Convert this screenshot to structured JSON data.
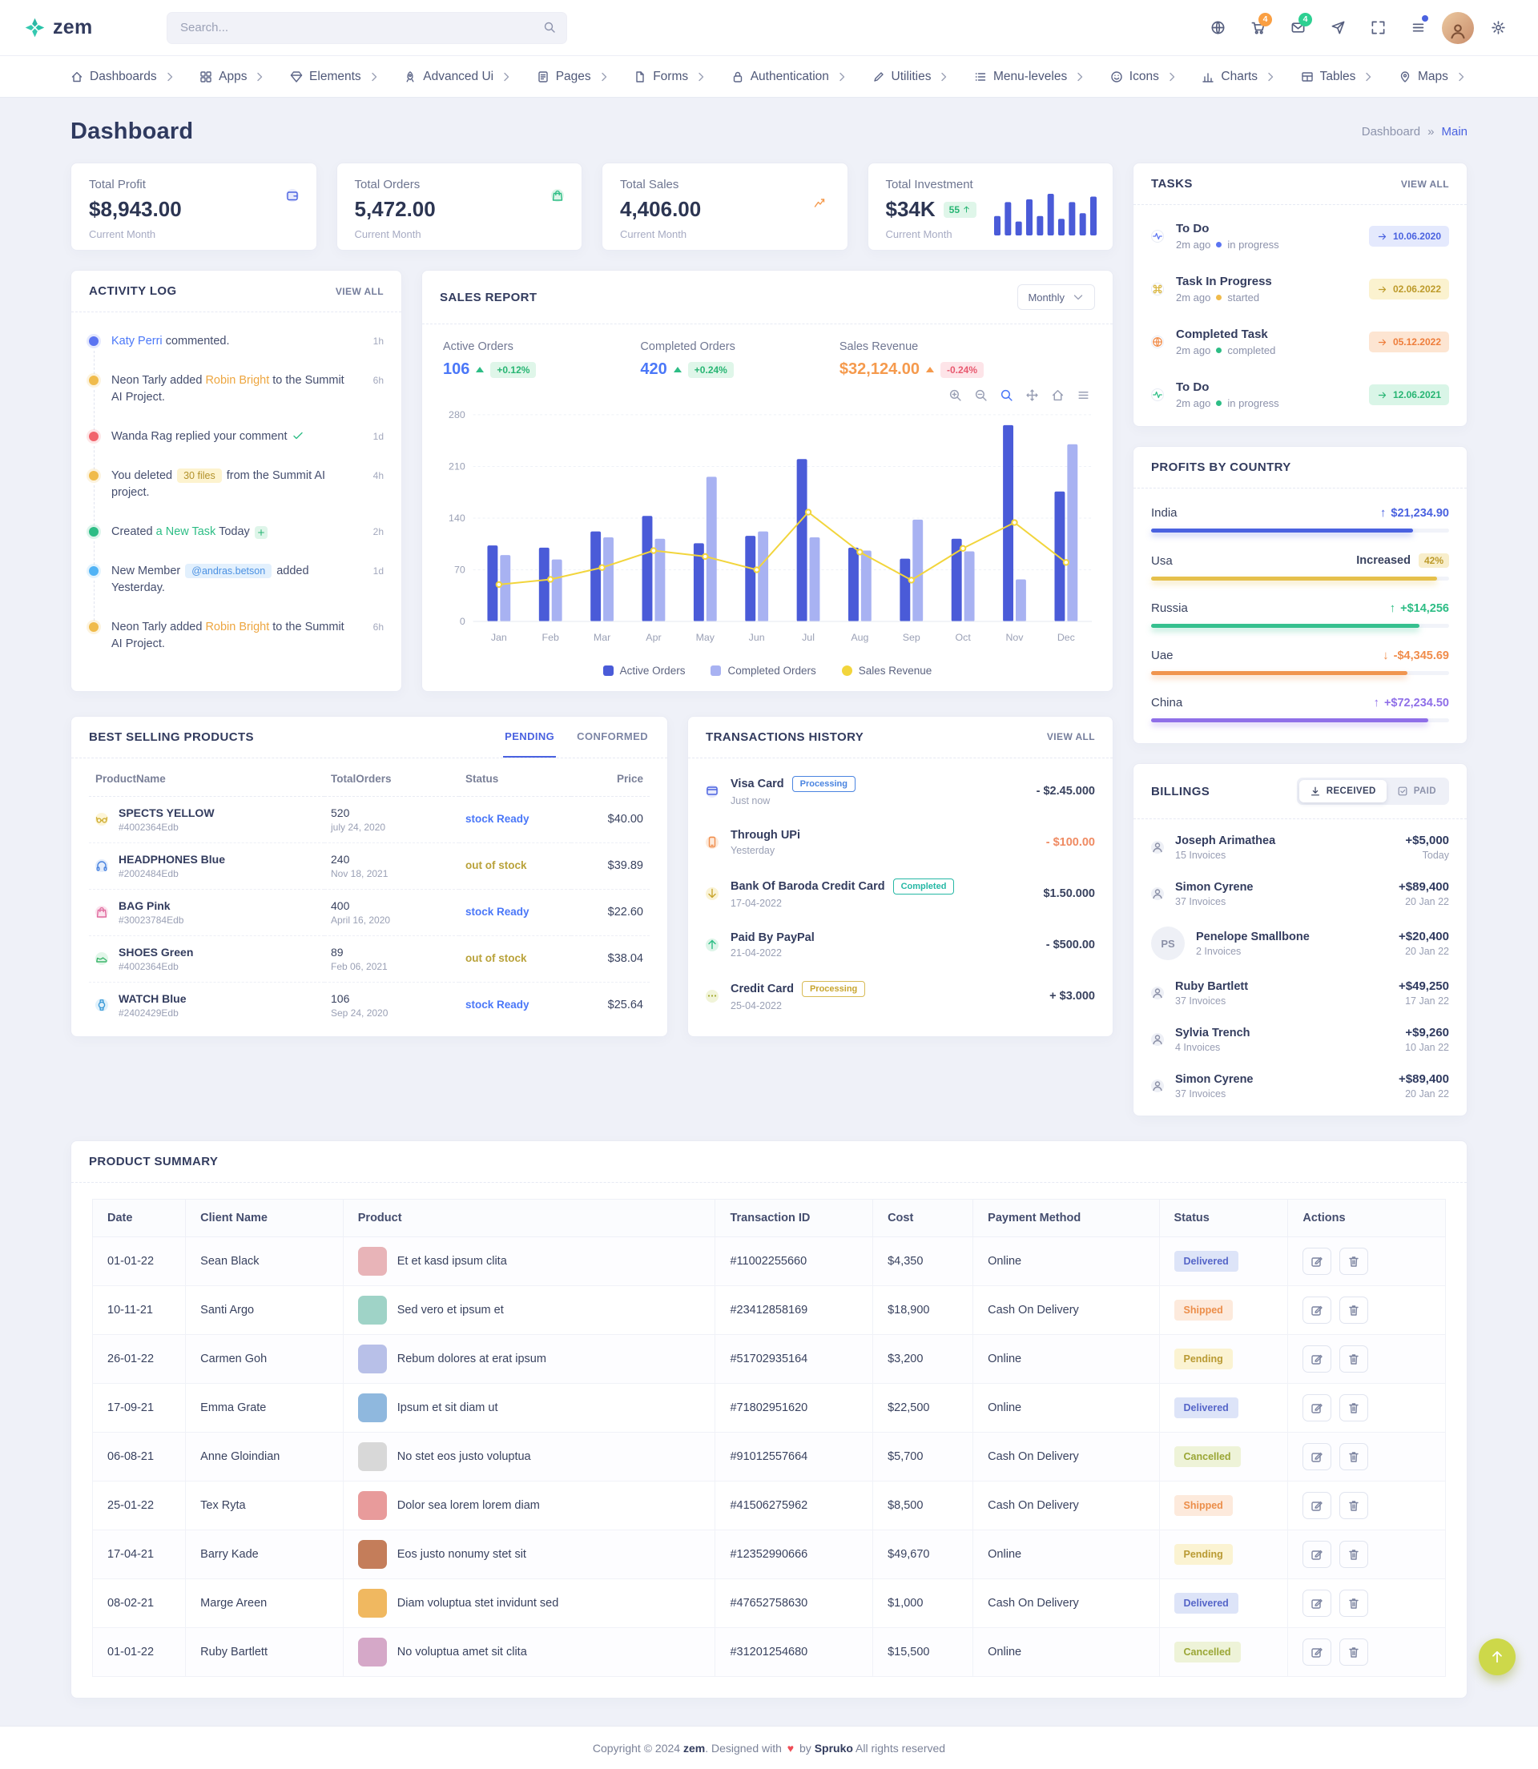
{
  "header": {
    "brand": "zem",
    "search_placeholder": "Search...",
    "cart_badge": "4",
    "mail_badge": "4"
  },
  "nav": {
    "items": [
      {
        "label": "Dashboards",
        "icon": "home"
      },
      {
        "label": "Apps",
        "icon": "grid"
      },
      {
        "label": "Elements",
        "icon": "gem"
      },
      {
        "label": "Advanced Ui",
        "icon": "rocket"
      },
      {
        "label": "Pages",
        "icon": "page"
      },
      {
        "label": "Forms",
        "icon": "file"
      },
      {
        "label": "Authentication",
        "icon": "lock"
      },
      {
        "label": "Utilities",
        "icon": "pen"
      },
      {
        "label": "Menu-leveles",
        "icon": "list"
      },
      {
        "label": "Icons",
        "icon": "smile"
      },
      {
        "label": "Charts",
        "icon": "chart"
      },
      {
        "label": "Tables",
        "icon": "table"
      },
      {
        "label": "Maps",
        "icon": "map"
      }
    ]
  },
  "page": {
    "title": "Dashboard",
    "breadcrumb_parent": "Dashboard",
    "breadcrumb_sep": "»",
    "breadcrumb_current": "Main"
  },
  "stats": [
    {
      "label": "Total Profit",
      "value": "$8,943.00",
      "period": "Current Month"
    },
    {
      "label": "Total Orders",
      "value": "5,472.00",
      "period": "Current Month"
    },
    {
      "label": "Total Sales",
      "value": "4,406.00",
      "period": "Current Month"
    },
    {
      "label": "Total Investment",
      "value": "$34K",
      "badge": "55",
      "period": "Current Month"
    }
  ],
  "activity": {
    "title": "ACTIVITY LOG",
    "view_all": "VIEW ALL",
    "items": [
      {
        "pre": "",
        "em": "Katy Perri",
        "em_style": "link",
        "post": " commented.",
        "time": "1h",
        "dot": "blue"
      },
      {
        "pre": "Neon Tarly added ",
        "em": "Robin Bright",
        "em_style": "orange",
        "post": " to the Summit AI Project.",
        "time": "6h",
        "dot": "yellow"
      },
      {
        "pre": "Wanda Rag replied your comment",
        "em": "",
        "post": "",
        "extra_icon": "check",
        "time": "1d",
        "dot": "red"
      },
      {
        "pre": "You deleted ",
        "em": "30 files",
        "em_style": "badge-yellow",
        "post": " from the Summit AI project.",
        "time": "4h",
        "dot": "yellow"
      },
      {
        "pre": "Created ",
        "em": "a New Task",
        "em_style": "green",
        "post": " Today",
        "extra_icon": "plus",
        "time": "2h",
        "dot": "green"
      },
      {
        "pre": "New Member ",
        "em": "@andras.betson",
        "em_style": "badge-blue",
        "post": " added Yesterday.",
        "time": "1d",
        "dot": "sky"
      },
      {
        "pre": "Neon Tarly added ",
        "em": "Robin Bright",
        "em_style": "orange",
        "post": " to the Summit AI Project.",
        "time": "6h",
        "dot": "yellow"
      }
    ]
  },
  "sales": {
    "title": "SALES REPORT",
    "period": "Monthly",
    "stats": [
      {
        "label": "Active Orders",
        "value": "106",
        "value_color": "blue",
        "caret": "up",
        "delta": "+0.12%",
        "delta_type": "green"
      },
      {
        "label": "Completed Orders",
        "value": "420",
        "value_color": "blue",
        "caret": "up",
        "delta": "+0.24%",
        "delta_type": "green"
      },
      {
        "label": "Sales Revenue",
        "value": "$32,124.00",
        "value_color": "orange",
        "caret": "orange",
        "delta": "-0.24%",
        "delta_type": "red"
      }
    ]
  },
  "chart_data": [
    {
      "type": "bar",
      "title": "SALES REPORT",
      "categories": [
        "Jan",
        "Feb",
        "Mar",
        "Apr",
        "May",
        "Jun",
        "Jul",
        "Aug",
        "Sep",
        "Oct",
        "Nov",
        "Dec"
      ],
      "series": [
        {
          "name": "Active Orders",
          "type": "bar",
          "color": "#4a5bd8",
          "values": [
            103,
            100,
            122,
            143,
            106,
            116,
            220,
            100,
            85,
            112,
            266,
            176
          ]
        },
        {
          "name": "Completed Orders",
          "type": "bar",
          "color": "#a8b2f2",
          "values": [
            90,
            84,
            114,
            112,
            196,
            122,
            114,
            96,
            138,
            95,
            57,
            240
          ]
        },
        {
          "name": "Sales Revenue",
          "type": "line",
          "color": "#f2d53c",
          "values": [
            50,
            57,
            73,
            96,
            88,
            70,
            148,
            94,
            56,
            99,
            134,
            80
          ]
        }
      ],
      "ylim": [
        0,
        280
      ],
      "yticks": [
        0,
        70,
        140,
        210,
        280
      ],
      "legend_position": "bottom",
      "grid": true
    },
    {
      "type": "bar",
      "title": "Total Investment trend",
      "values": [
        14,
        24,
        10,
        26,
        14,
        30,
        12,
        24,
        16,
        28
      ],
      "color": "#4a5bd8"
    }
  ],
  "tasks": {
    "title": "TASKS",
    "view_all": "VIEW ALL",
    "items": [
      {
        "icon": "pulse",
        "icon_color": "indigo",
        "title": "To Do",
        "time": "2m ago",
        "status": "in progress",
        "color": "blue",
        "date": "10.06.2020"
      },
      {
        "icon": "cmd",
        "icon_color": "yellow",
        "title": "Task In Progress",
        "time": "2m ago",
        "status": "started",
        "color": "yellow",
        "date": "02.06.2022"
      },
      {
        "icon": "globe",
        "icon_color": "orange",
        "title": "Completed Task",
        "time": "2m ago",
        "status": "completed",
        "color": "orange",
        "date": "05.12.2022"
      },
      {
        "icon": "pulse",
        "icon_color": "green",
        "title": "To Do",
        "time": "2m ago",
        "status": "in progress",
        "color": "green",
        "date": "12.06.2021"
      }
    ]
  },
  "profits": {
    "title": "PROFITS BY COUNTRY",
    "items": [
      {
        "country": "India",
        "arrow": "↑",
        "value": "$21,234.90",
        "color": "blue",
        "width": 88
      },
      {
        "country": "Usa",
        "arrow": "",
        "value": "Increased",
        "badge": "42%",
        "color": "yellow",
        "width": 96
      },
      {
        "country": "Russia",
        "arrow": "↑",
        "value": "+$14,256",
        "color": "green",
        "width": 90
      },
      {
        "country": "Uae",
        "arrow": "↓",
        "value": "-$4,345.69",
        "color": "orange",
        "width": 86
      },
      {
        "country": "China",
        "arrow": "↑",
        "value": "+$72,234.50",
        "color": "violet",
        "width": 93
      }
    ]
  },
  "best": {
    "title": "BEST SELLING PRODUCTS",
    "tabs": [
      "PENDING",
      "CONFORMED"
    ],
    "headers": [
      "ProductName",
      "TotalOrders",
      "Status",
      "Price"
    ],
    "rows": [
      {
        "name": "SPECTS YELLOW",
        "sku": "#4002364Edb",
        "orders": "520",
        "date": "july 24, 2020",
        "status": "stock Ready",
        "status_type": "ready",
        "price": "$40.00",
        "thumb": "glasses",
        "thumb_color": "yellow"
      },
      {
        "name": "HEADPHONES Blue",
        "sku": "#2002484Edb",
        "orders": "240",
        "date": "Nov 18, 2021",
        "status": "out of stock",
        "status_type": "out",
        "price": "$39.89",
        "thumb": "headphones",
        "thumb_color": "blue"
      },
      {
        "name": "BAG Pink",
        "sku": "#30023784Edb",
        "orders": "400",
        "date": "April 16, 2020",
        "status": "stock Ready",
        "status_type": "ready",
        "price": "$22.60",
        "thumb": "bag",
        "thumb_color": "pink"
      },
      {
        "name": "SHOES Green",
        "sku": "#4002364Edb",
        "orders": "89",
        "date": "Feb 06, 2021",
        "status": "out of stock",
        "status_type": "out",
        "price": "$38.04",
        "thumb": "shoe",
        "thumb_color": "green"
      },
      {
        "name": "WATCH Blue",
        "sku": "#2402429Edb",
        "orders": "106",
        "date": "Sep 24, 2020",
        "status": "stock Ready",
        "status_type": "ready",
        "price": "$25.64",
        "thumb": "watch",
        "thumb_color": "skyblue"
      }
    ]
  },
  "transactions": {
    "title": "TRANSACTIONS HISTORY",
    "view_all": "VIEW ALL",
    "items": [
      {
        "icon": "card",
        "icon_color": "indigo",
        "title": "Visa Card",
        "badge": "Processing",
        "badge_type": "blue",
        "sub": "Just now",
        "amount": "- $2.45.000"
      },
      {
        "icon": "phone",
        "icon_color": "orange",
        "title": "Through UPi",
        "sub": "Yesterday",
        "amount": "- $100.00",
        "amount_color": "orange"
      },
      {
        "icon": "arrow-down",
        "icon_color": "yellow",
        "title": "Bank Of Baroda Credit Card",
        "badge": "Completed",
        "badge_type": "teal",
        "sub": "17-04-2022",
        "amount": "$1.50.000"
      },
      {
        "icon": "arrow-up",
        "icon_color": "green",
        "title": "Paid By PayPal",
        "sub": "21-04-2022",
        "amount": "- $500.00"
      },
      {
        "icon": "dots",
        "icon_color": "olive",
        "title": "Credit Card",
        "badge": "Processing",
        "badge_type": "yellow",
        "sub": "25-04-2022",
        "amount": "+ $3.000"
      }
    ]
  },
  "billings": {
    "title": "BILLINGS",
    "toggle": [
      "RECEIVED",
      "PAID"
    ],
    "items": [
      {
        "name": "Joseph Arimathea",
        "sub": "15 Invoices",
        "amount": "+$5,000",
        "date": "Today",
        "avatar_icon": "user"
      },
      {
        "name": "Simon Cyrene",
        "sub": "37 Invoices",
        "amount": "+$89,400",
        "date": "20 Jan 22",
        "avatar_icon": "user"
      },
      {
        "name": "Penelope Smallbone",
        "sub": "2 Invoices",
        "amount": "+$20,400",
        "date": "20 Jan 22",
        "avatar_text": "PS"
      },
      {
        "name": "Ruby Bartlett",
        "sub": "37 Invoices",
        "amount": "+$49,250",
        "date": "17 Jan 22",
        "avatar_icon": "user"
      },
      {
        "name": "Sylvia Trench",
        "sub": "4 Invoices",
        "amount": "+$9,260",
        "date": "10 Jan 22",
        "avatar_icon": "user"
      },
      {
        "name": "Simon Cyrene",
        "sub": "37 Invoices",
        "amount": "+$89,400",
        "date": "20 Jan 22",
        "avatar_icon": "user"
      }
    ]
  },
  "summary": {
    "title": "PRODUCT SUMMARY",
    "headers": [
      "Date",
      "Client Name",
      "Product",
      "Transaction ID",
      "Cost",
      "Payment Method",
      "Status",
      "Actions"
    ],
    "rows": [
      {
        "date": "01-01-22",
        "client": "Sean Black",
        "product": "Et et kasd ipsum clita",
        "tx": "#11002255660",
        "cost": "$4,350",
        "pay": "Online",
        "status": "Delivered",
        "status_type": "delivered",
        "thumb": "#e8b4b8"
      },
      {
        "date": "10-11-21",
        "client": "Santi Argo",
        "product": "Sed vero et ipsum et",
        "tx": "#23412858169",
        "cost": "$18,900",
        "pay": "Cash On Delivery",
        "status": "Shipped",
        "status_type": "shipped",
        "thumb": "#9fd3c7"
      },
      {
        "date": "26-01-22",
        "client": "Carmen Goh",
        "product": "Rebum dolores at erat ipsum",
        "tx": "#51702935164",
        "cost": "$3,200",
        "pay": "Online",
        "status": "Pending",
        "status_type": "pending",
        "thumb": "#b8c0e8"
      },
      {
        "date": "17-09-21",
        "client": "Emma Grate",
        "product": "Ipsum et sit diam ut",
        "tx": "#71802951620",
        "cost": "$22,500",
        "pay": "Online",
        "status": "Delivered",
        "status_type": "delivered",
        "thumb": "#8fb8de"
      },
      {
        "date": "06-08-21",
        "client": "Anne Gloindian",
        "product": "No stet eos justo voluptua",
        "tx": "#91012557664",
        "cost": "$5,700",
        "pay": "Cash On Delivery",
        "status": "Cancelled",
        "status_type": "cancelled",
        "thumb": "#d8d8d8"
      },
      {
        "date": "25-01-22",
        "client": "Tex Ryta",
        "product": "Dolor sea lorem lorem diam",
        "tx": "#41506275962",
        "cost": "$8,500",
        "pay": "Cash On Delivery",
        "status": "Shipped",
        "status_type": "shipped",
        "thumb": "#e89b9b"
      },
      {
        "date": "17-04-21",
        "client": "Barry Kade",
        "product": "Eos justo nonumy stet sit",
        "tx": "#12352990666",
        "cost": "$49,670",
        "pay": "Online",
        "status": "Pending",
        "status_type": "pending",
        "thumb": "#c47d5a"
      },
      {
        "date": "08-02-21",
        "client": "Marge Areen",
        "product": "Diam voluptua stet invidunt sed",
        "tx": "#47652758630",
        "cost": "$1,000",
        "pay": "Cash On Delivery",
        "status": "Delivered",
        "status_type": "delivered",
        "thumb": "#f0b860"
      },
      {
        "date": "01-01-22",
        "client": "Ruby Bartlett",
        "product": "No voluptua amet sit clita",
        "tx": "#31201254680",
        "cost": "$15,500",
        "pay": "Online",
        "status": "Cancelled",
        "status_type": "cancelled",
        "thumb": "#d5a8c8"
      }
    ]
  },
  "footer": {
    "prefix": "Copyright © 2024 ",
    "brand": "zem",
    "mid": ". Designed with ",
    "heart": "♥",
    "mid2": " by ",
    "vendor": "Spruko",
    "suffix": " All rights reserved"
  }
}
